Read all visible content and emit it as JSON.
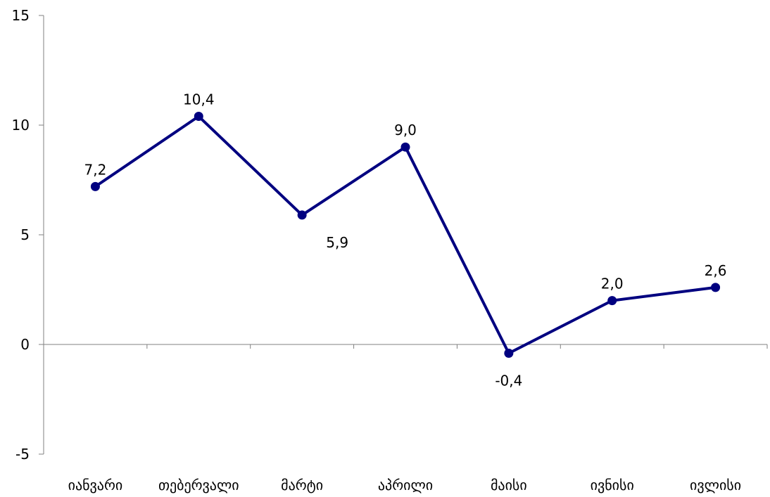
{
  "chart_data": {
    "type": "line",
    "title": "",
    "xlabel": "",
    "ylabel": "",
    "categories": [
      "იანვარი",
      "თებერვალი",
      "მარტი",
      "აპრილი",
      "მაისი",
      "ივნისი",
      "ივლისი"
    ],
    "series": [
      {
        "values": [
          7.2,
          10.4,
          5.9,
          9.0,
          -0.4,
          2.0,
          2.6
        ],
        "labels": [
          "7,2",
          "10,4",
          "5,9",
          "9,0",
          "-0,4",
          "2,0",
          "2,6"
        ],
        "color": "#000080"
      }
    ],
    "ylim": [
      -5,
      15
    ],
    "yticks": [
      -5,
      0,
      5,
      10,
      15
    ],
    "ytick_labels": [
      "-5",
      "0",
      "5",
      "10",
      "15"
    ],
    "grid": false,
    "legend": "none"
  }
}
